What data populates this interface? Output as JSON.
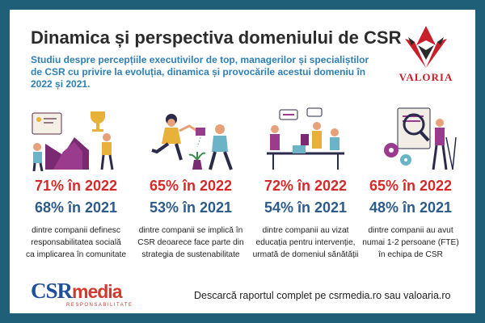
{
  "header": {
    "title": "Dinamica și perspectiva domeniului de CSR",
    "subtitle": "Studiu despre percepțiile executivilor de top, managerilor și specialiștilor de CSR cu privire la evoluția, dinamica și provocările acestui domeniu în 2022 și 2021."
  },
  "brand": {
    "logo_text": "VALORIA",
    "accent": "#c8202a"
  },
  "stats": [
    {
      "pct_2022": "71% în 2022",
      "pct_2021": "68% în 2021",
      "desc": [
        "dintre companii definesc",
        "responsabilitatea socială",
        "ca implicarea în comunitate"
      ],
      "icon": "growth-chart-trophy-icon"
    },
    {
      "pct_2022": "65% în 2022",
      "pct_2021": "53% în 2021",
      "desc": [
        "dintre companii se implică în",
        "CSR deoarece face parte din",
        "strategia de sustenabilitate"
      ],
      "icon": "watering-plant-icon"
    },
    {
      "pct_2022": "72% în 2022",
      "pct_2021": "54% în 2021",
      "desc": [
        "dintre companii au vizat",
        "educația pentru intervenție,",
        "urmată de domeniul sănătății"
      ],
      "icon": "team-meeting-icon"
    },
    {
      "pct_2022": "65% în 2022",
      "pct_2021": "48% în 2021",
      "desc": [
        "dintre companii au avut",
        "numai 1-2 persoane (FTE)",
        "în echipa de CSR"
      ],
      "icon": "magnifier-gears-icon"
    }
  ],
  "colors": {
    "pct_2022": "#d42a2a",
    "pct_2021": "#2c5b8a",
    "subtitle": "#2f7fb3",
    "background": "#1f5f78"
  },
  "footer": {
    "csr_logo_main": "CSR",
    "csr_logo_media": "media",
    "csr_logo_tag": "RESPONSABILITATE",
    "download_text": "Descarcă raportul complet pe csrmedia.ro sau valoaria.ro"
  }
}
